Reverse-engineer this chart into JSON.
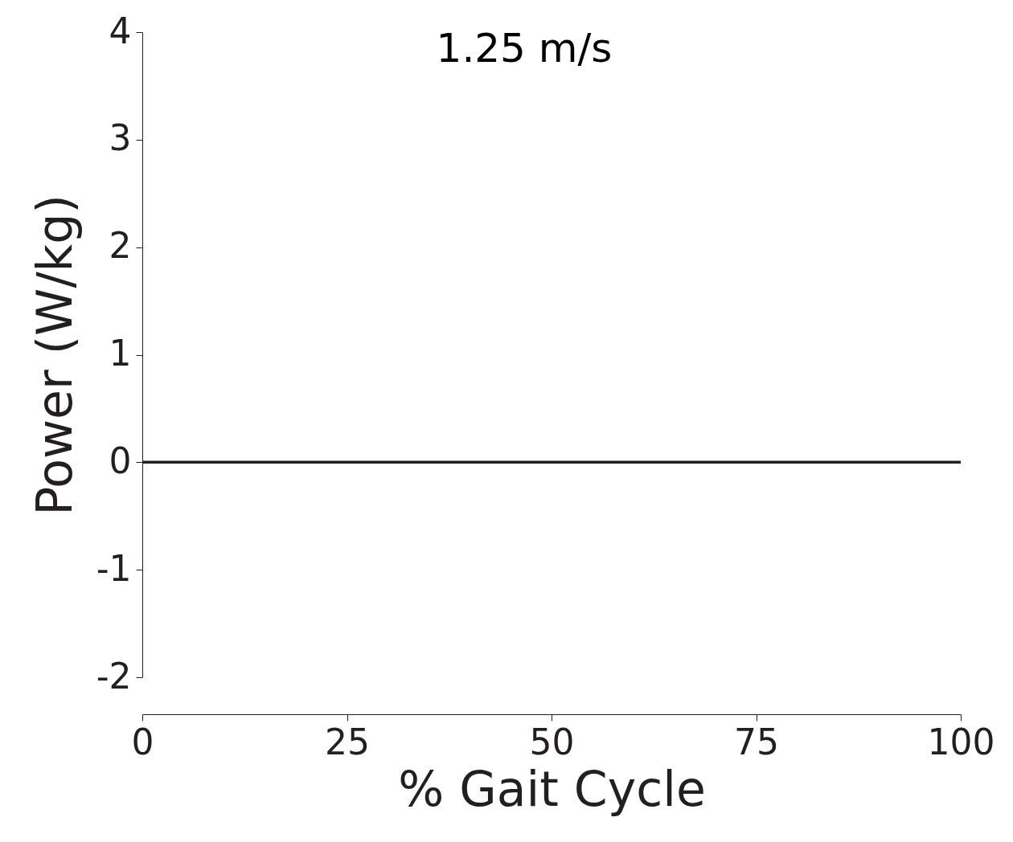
{
  "chart_data": {
    "type": "line",
    "title": "1.25 m/s",
    "xlabel": "% Gait Cycle",
    "ylabel": "Power (W/kg)",
    "x": [
      0,
      100
    ],
    "series": [
      {
        "color": "#231f20",
        "values": [
          0,
          0
        ]
      }
    ],
    "xlim": [
      0,
      100
    ],
    "xticks": [
      0,
      25,
      50,
      75,
      100
    ],
    "ylim": [
      -2,
      4
    ],
    "yticks": [
      -2,
      -1,
      0,
      1,
      2,
      3,
      4
    ],
    "grid": false,
    "legend": false,
    "marker": "none",
    "line_style": "solid"
  }
}
